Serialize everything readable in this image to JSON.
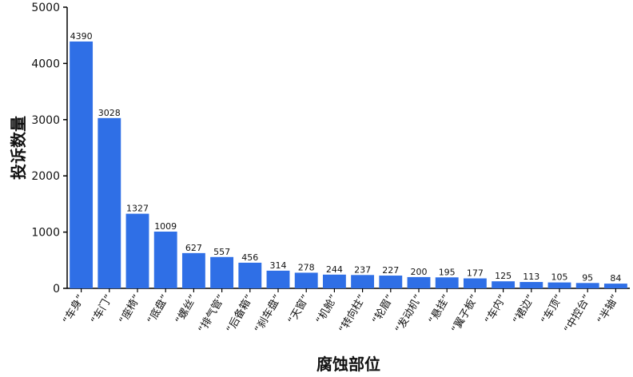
{
  "chart_data": {
    "type": "bar",
    "title": "",
    "xlabel": "腐蚀部位",
    "ylabel": "投诉数量",
    "ylim": [
      0,
      5000
    ],
    "yticks": [
      0,
      1000,
      2000,
      3000,
      4000,
      5000
    ],
    "grid": false,
    "bar_color": "#2f6fe6",
    "categories": [
      "“车身”",
      "“车门”",
      "“座椅”",
      "“底盘”",
      "“螺丝”",
      "“排气管”",
      "“后备箱”",
      "“刹车盘”",
      "“天窗”",
      "“机舱”",
      "“转向柱”",
      "“轮眉”",
      "“发动机”",
      "“悬挂”",
      "“翼子板”",
      "“车内”",
      "“裙边”",
      "“车顶”",
      "“中控台”",
      "“半轴”"
    ],
    "values": [
      4390,
      3028,
      1327,
      1009,
      627,
      557,
      456,
      314,
      278,
      244,
      237,
      227,
      200,
      195,
      177,
      125,
      113,
      105,
      95,
      84
    ]
  }
}
